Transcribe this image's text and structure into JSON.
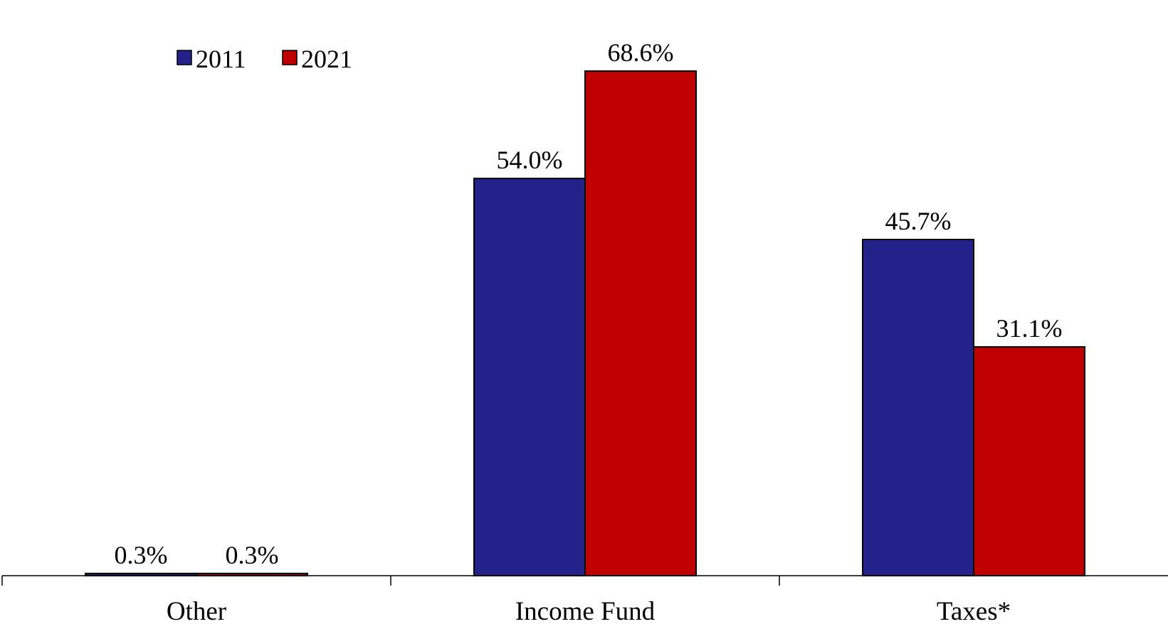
{
  "chart_data": {
    "type": "bar",
    "categories": [
      "Other",
      "Income Fund",
      "Taxes*"
    ],
    "series": [
      {
        "name": "2011",
        "color": "#22228A",
        "values": [
          0.3,
          54.0,
          45.7
        ]
      },
      {
        "name": "2021",
        "color": "#C00000",
        "values": [
          0.3,
          68.6,
          31.1
        ]
      }
    ],
    "data_labels": [
      [
        "0.3%",
        "54.0%",
        "45.7%"
      ],
      [
        "0.3%",
        "68.6%",
        "31.1%"
      ]
    ],
    "title": "",
    "xlabel": "",
    "ylabel": "",
    "ylim": [
      0,
      74
    ],
    "grid": false,
    "legend_position": "top-left",
    "y_axis_visible": false
  }
}
